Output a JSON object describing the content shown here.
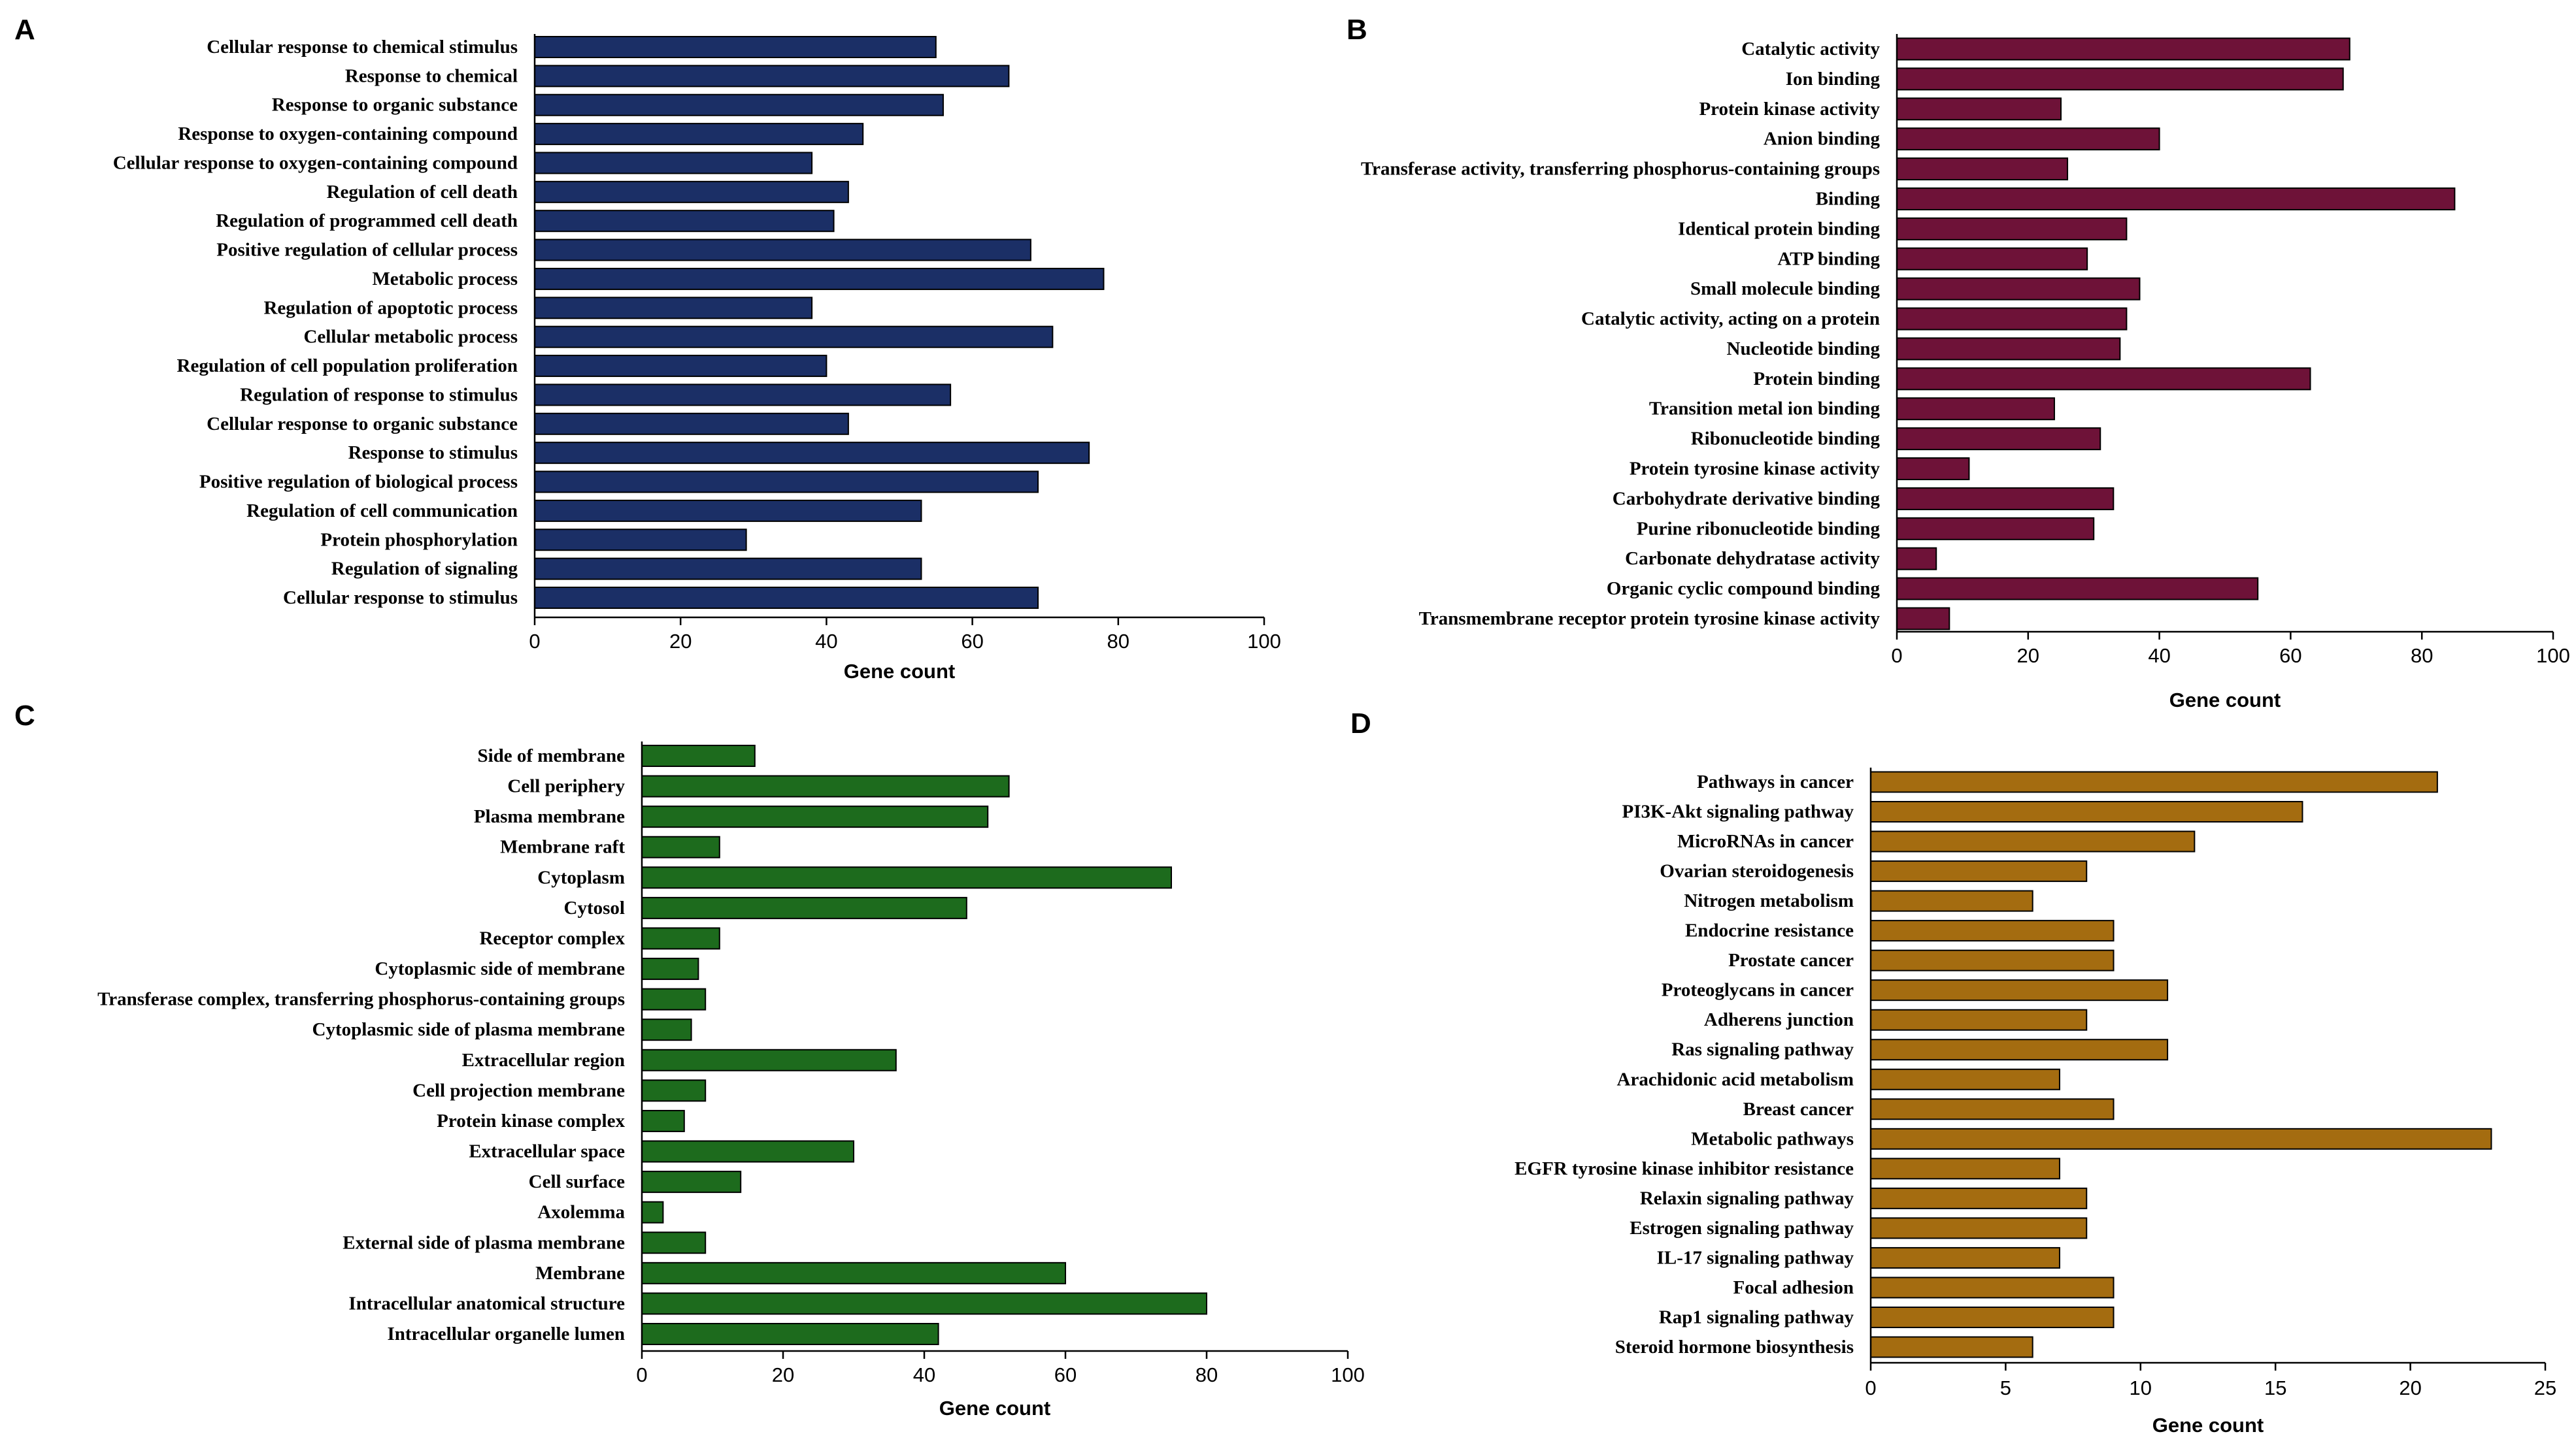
{
  "chart_data": [
    {
      "type": "bar",
      "orientation": "horizontal",
      "panel_label": "A",
      "title": "",
      "xlabel": "Gene count",
      "ylabel": "",
      "xlim": [
        0,
        100
      ],
      "xticks": [
        0,
        20,
        40,
        60,
        80,
        100
      ],
      "bar_color": "#1b2f66",
      "categories": [
        "Cellular response to chemical stimulus",
        "Response to chemical",
        "Response to organic substance",
        "Response to oxygen-containing compound",
        "Cellular response to oxygen-containing compound",
        "Regulation of cell death",
        "Regulation of programmed cell death",
        "Positive regulation of cellular process",
        "Metabolic process",
        "Regulation of apoptotic process",
        "Cellular metabolic process",
        "Regulation of cell population proliferation",
        "Regulation of response to stimulus",
        "Cellular response to organic substance",
        "Response to stimulus",
        "Positive regulation of biological process",
        "Regulation of cell communication",
        "Protein phosphorylation",
        "Regulation of signaling",
        "Cellular response to stimulus"
      ],
      "values": [
        55,
        65,
        56,
        45,
        38,
        43,
        41,
        68,
        78,
        38,
        71,
        40,
        57,
        43,
        76,
        69,
        53,
        29,
        53,
        69
      ]
    },
    {
      "type": "bar",
      "orientation": "horizontal",
      "panel_label": "B",
      "title": "",
      "xlabel": "Gene count",
      "ylabel": "",
      "xlim": [
        0,
        100
      ],
      "xticks": [
        0,
        20,
        40,
        60,
        80,
        100
      ],
      "bar_color": "#6e1238",
      "categories": [
        "Catalytic activity",
        "Ion binding",
        "Protein kinase activity",
        "Anion binding",
        "Transferase activity, transferring phosphorus-containing groups",
        "Binding",
        "Identical protein binding",
        "ATP binding",
        "Small molecule binding",
        "Catalytic activity, acting on a protein",
        "Nucleotide binding",
        "Protein binding",
        "Transition metal ion binding",
        "Ribonucleotide binding",
        "Protein tyrosine kinase activity",
        "Carbohydrate derivative binding",
        "Purine ribonucleotide binding",
        "Carbonate dehydratase activity",
        "Organic cyclic compound binding",
        "Transmembrane receptor protein tyrosine kinase activity"
      ],
      "values": [
        69,
        68,
        25,
        40,
        26,
        85,
        35,
        29,
        37,
        35,
        34,
        63,
        24,
        31,
        11,
        33,
        30,
        6,
        55,
        8
      ]
    },
    {
      "type": "bar",
      "orientation": "horizontal",
      "panel_label": "C",
      "title": "",
      "xlabel": "Gene count",
      "ylabel": "",
      "xlim": [
        0,
        100
      ],
      "xticks": [
        0,
        20,
        40,
        60,
        80,
        100
      ],
      "bar_color": "#1d6b1d",
      "categories": [
        "Side of membrane",
        "Cell periphery",
        "Plasma membrane",
        "Membrane raft",
        "Cytoplasm",
        "Cytosol",
        "Receptor complex",
        "Cytoplasmic side of membrane",
        "Transferase complex, transferring phosphorus-containing groups",
        "Cytoplasmic side of plasma membrane",
        "Extracellular region",
        "Cell projection membrane",
        "Protein kinase complex",
        "Extracellular space",
        "Cell surface",
        "Axolemma",
        "External side of plasma membrane",
        "Membrane",
        "Intracellular anatomical structure",
        "Intracellular organelle lumen"
      ],
      "values": [
        16,
        52,
        49,
        11,
        75,
        46,
        11,
        8,
        9,
        7,
        36,
        9,
        6,
        30,
        14,
        3,
        9,
        60,
        80,
        42
      ]
    },
    {
      "type": "bar",
      "orientation": "horizontal",
      "panel_label": "D",
      "title": "",
      "xlabel": "Gene count",
      "ylabel": "",
      "xlim": [
        0,
        25
      ],
      "xticks": [
        0,
        5,
        10,
        15,
        20,
        25
      ],
      "bar_color": "#a46c10",
      "categories": [
        "Pathways in cancer",
        "PI3K-Akt signaling pathway",
        "MicroRNAs in cancer",
        "Ovarian steroidogenesis",
        "Nitrogen metabolism",
        "Endocrine resistance",
        "Prostate cancer",
        "Proteoglycans in cancer",
        "Adherens junction",
        "Ras signaling pathway",
        "Arachidonic acid metabolism",
        "Breast cancer",
        "Metabolic pathways",
        "EGFR tyrosine kinase inhibitor resistance",
        "Relaxin signaling pathway",
        "Estrogen signaling pathway",
        "IL-17 signaling pathway",
        "Focal adhesion",
        "Rap1 signaling pathway",
        "Steroid hormone biosynthesis"
      ],
      "values": [
        21,
        16,
        12,
        8,
        6,
        9,
        9,
        11,
        8,
        11,
        7,
        9,
        23,
        7,
        8,
        8,
        7,
        9,
        9,
        6
      ]
    }
  ]
}
